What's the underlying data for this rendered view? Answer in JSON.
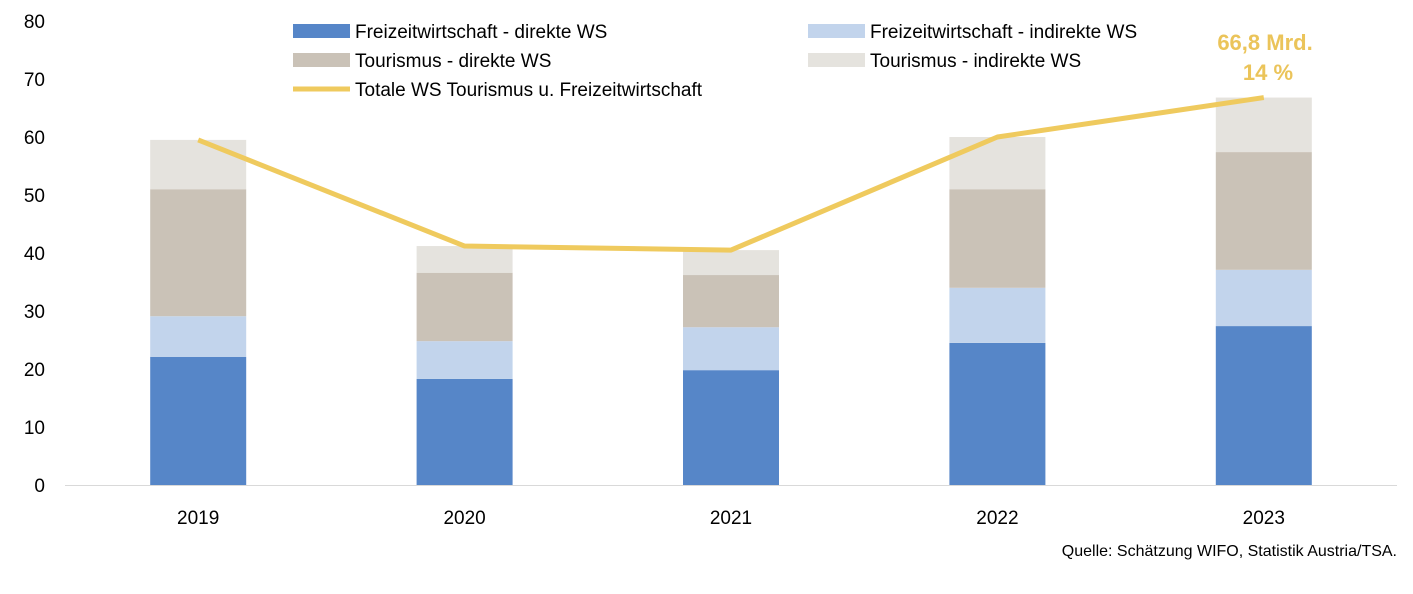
{
  "chart_data": {
    "type": "bar",
    "stacked": true,
    "categories": [
      "2019",
      "2020",
      "2021",
      "2022",
      "2023"
    ],
    "series": [
      {
        "name": "Freizeitwirtschaft - direkte WS",
        "color": "#5686C8",
        "values": [
          22.1,
          18.3,
          19.8,
          24.5,
          27.4
        ]
      },
      {
        "name": "Freizeitwirtschaft - indirekte WS",
        "color": "#C2D4EC",
        "values": [
          7.0,
          6.5,
          7.4,
          9.5,
          9.7
        ]
      },
      {
        "name": "Tourismus - direkte WS",
        "color": "#CAC2B7",
        "values": [
          21.9,
          11.8,
          9.0,
          17.0,
          20.3
        ]
      },
      {
        "name": "Tourismus - indirekte WS",
        "color": "#E5E3DE",
        "values": [
          8.5,
          4.6,
          4.3,
          9.0,
          9.4
        ]
      }
    ],
    "line_series": {
      "name": "Totale WS Tourismus u. Freizeitwirtschaft",
      "color": "#EFCA5E",
      "values": [
        59.5,
        41.2,
        40.5,
        60.0,
        66.8
      ]
    },
    "annotation": {
      "line1": "66,8 Mrd.",
      "line2": "14 %",
      "color": "#EBC45A",
      "category": "2023"
    },
    "ylim": [
      0,
      80
    ],
    "yticks": [
      0,
      10,
      20,
      30,
      40,
      50,
      60,
      70,
      80
    ],
    "grid": false,
    "legend_position": "top-center",
    "source": "Quelle: Schätzung WIFO, Statistik Austria/TSA."
  }
}
